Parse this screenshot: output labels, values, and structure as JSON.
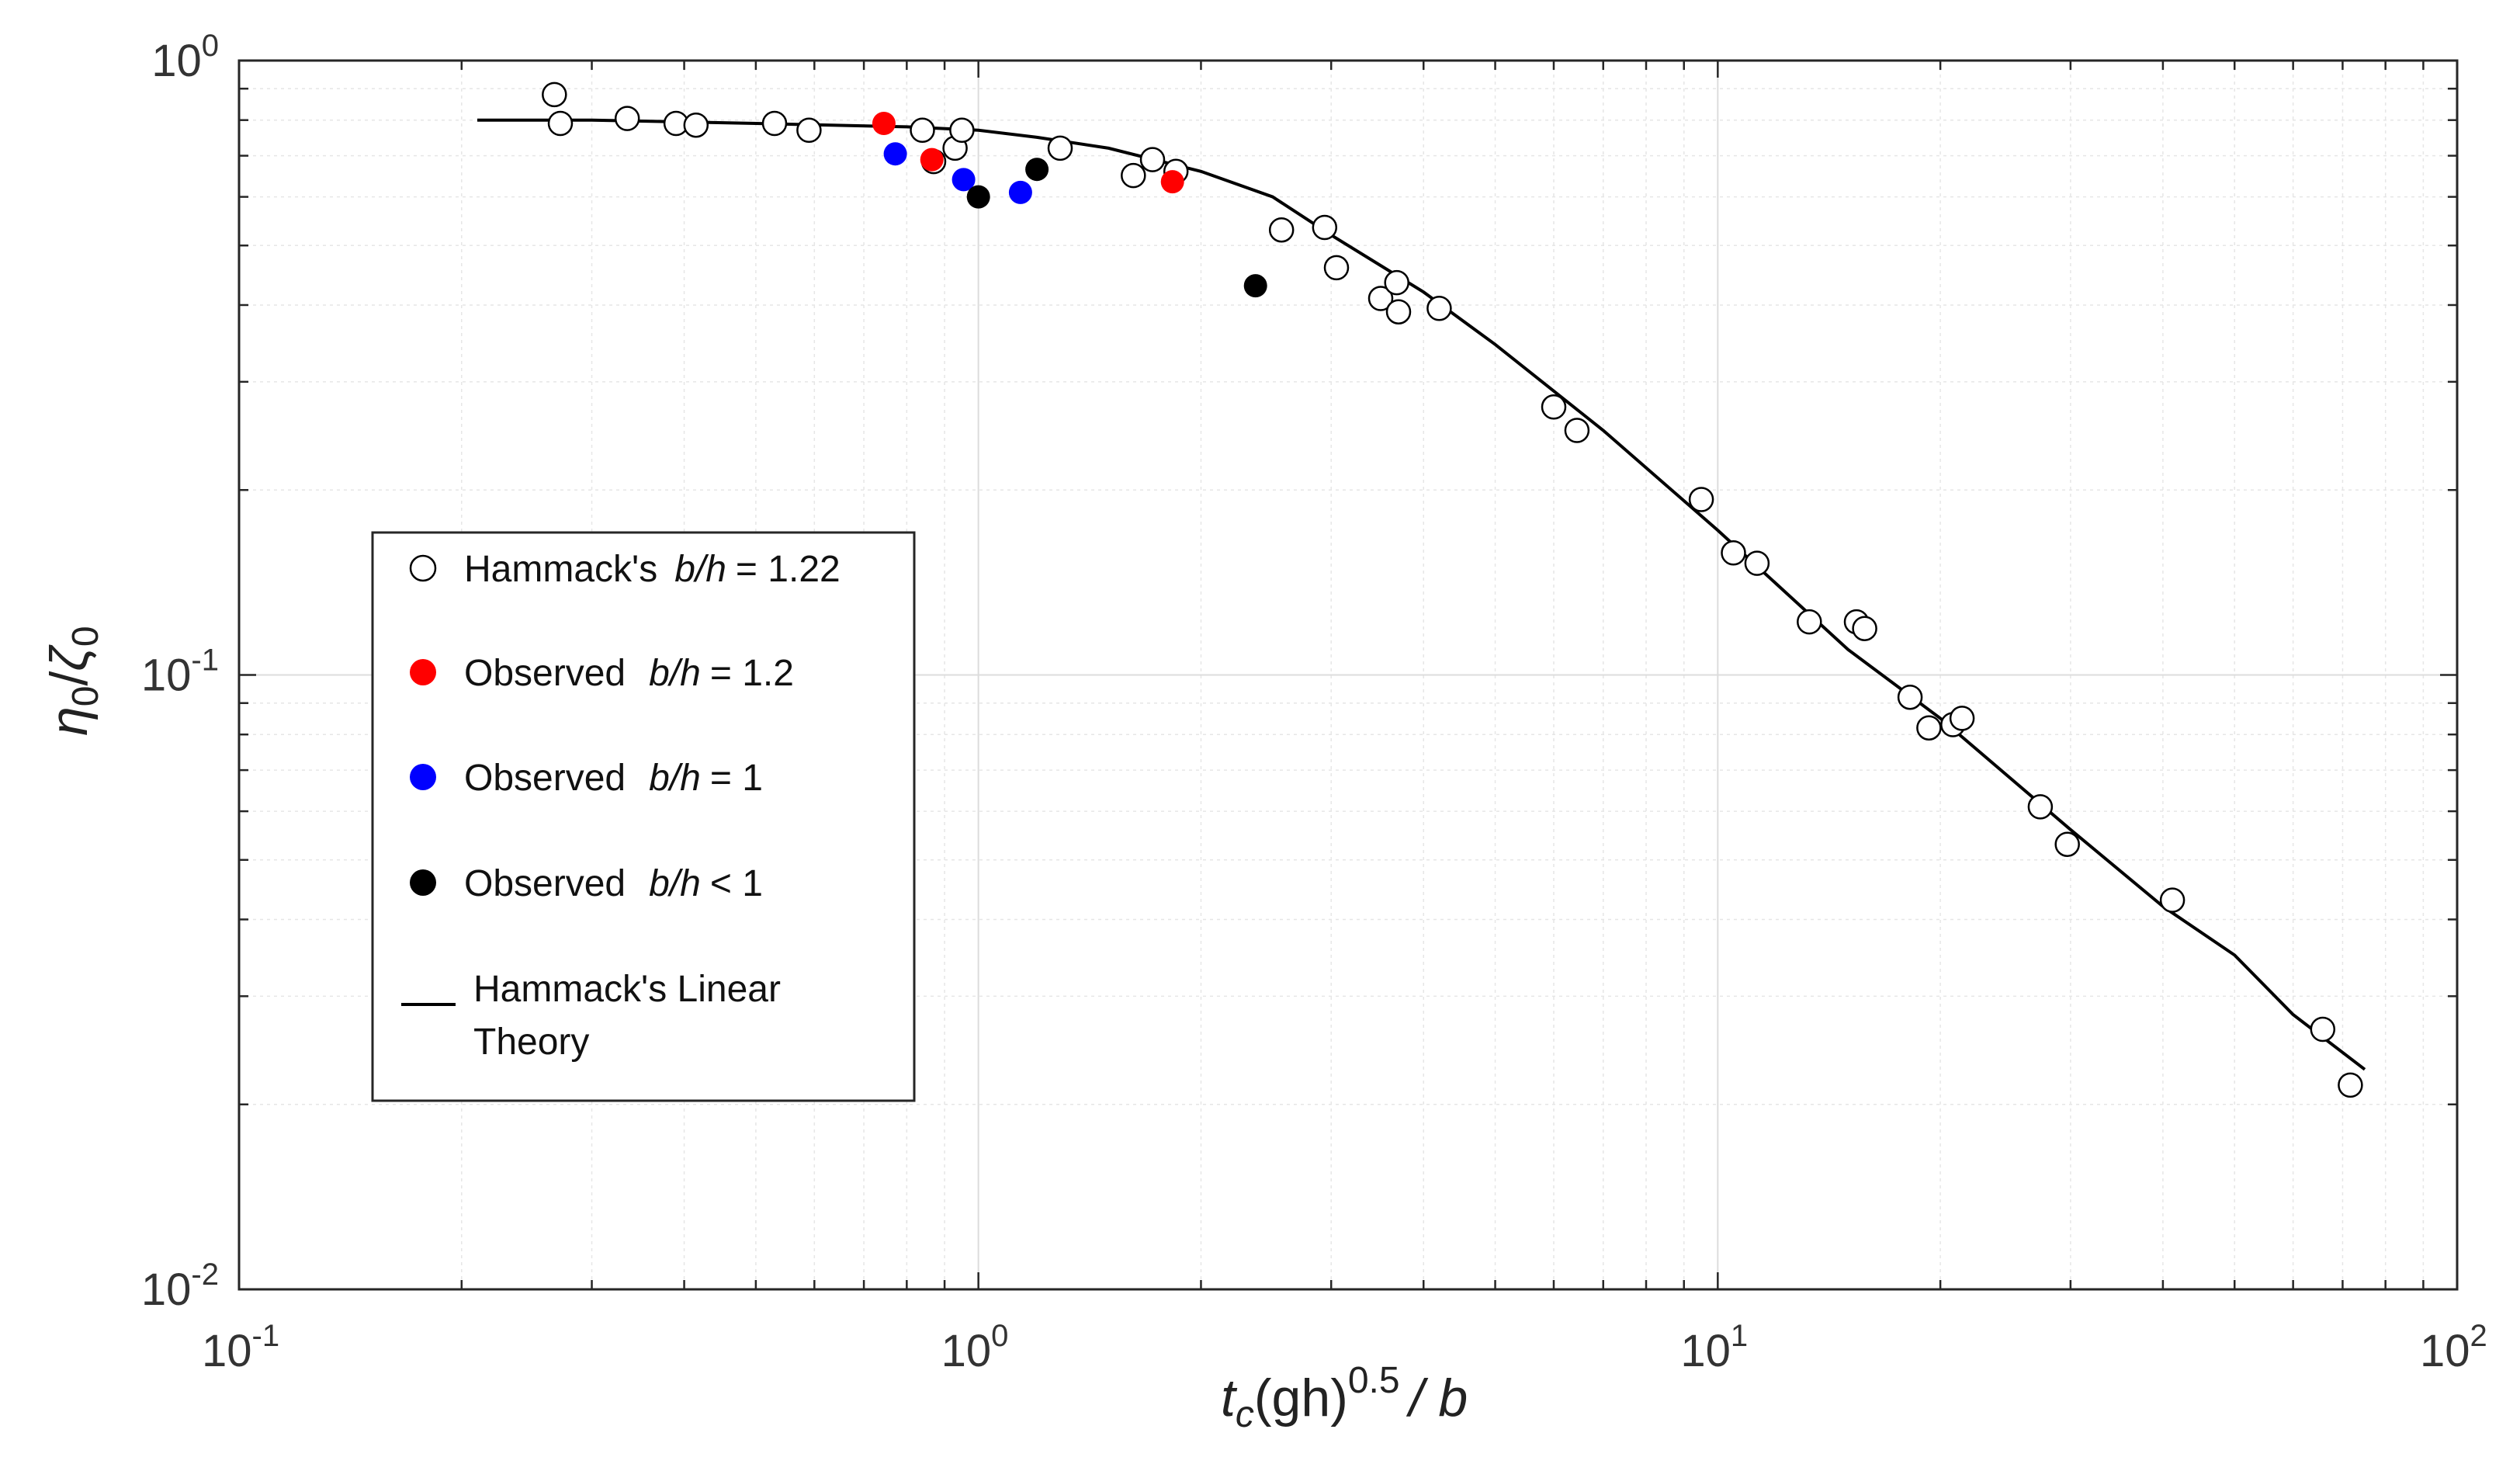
{
  "chart_data": {
    "type": "scatter",
    "title": "",
    "xscale": "log",
    "yscale": "log",
    "xlim": [
      0.1,
      100
    ],
    "ylim": [
      0.01,
      1
    ],
    "grid": true,
    "legend_position": "center-left",
    "xlabel": {
      "main": "t",
      "sub1": "c",
      "mid": "(gh)",
      "sup": "0.5",
      "end": "/ b"
    },
    "ylabel": {
      "eta": "η",
      "sub1": "0",
      "slash": "/",
      "zeta": "ζ",
      "sub2": "0"
    },
    "xticks": [
      {
        "value": 0.1,
        "base": "10",
        "exp": "-1"
      },
      {
        "value": 1,
        "base": "10",
        "exp": "0"
      },
      {
        "value": 10,
        "base": "10",
        "exp": "1"
      },
      {
        "value": 100,
        "base": "10",
        "exp": "2"
      }
    ],
    "yticks": [
      {
        "value": 0.01,
        "base": "10",
        "exp": "-2"
      },
      {
        "value": 0.1,
        "base": "10",
        "exp": "-1"
      },
      {
        "value": 1,
        "base": "10",
        "exp": "0"
      }
    ],
    "legend": [
      {
        "key": "hammack",
        "prefix": "Hammack's",
        "ratio": "b/h",
        "suffix": "= 1.22"
      },
      {
        "key": "red",
        "prefix": "Observed",
        "ratio": "b/h",
        "suffix": "= 1.2"
      },
      {
        "key": "blue",
        "prefix": "Observed",
        "ratio": "b/h",
        "suffix": "= 1"
      },
      {
        "key": "black",
        "prefix": "Observed",
        "ratio": "b/h",
        "suffix": "< 1"
      },
      {
        "key": "theory",
        "line1": "Hammack's Linear",
        "line2": "Theory"
      }
    ],
    "series": [
      {
        "name": "Hammack's b/h = 1.22",
        "key": "hammack",
        "marker": "open-circle",
        "color": "#000000",
        "points": [
          [
            0.267,
            0.88
          ],
          [
            0.272,
            0.79
          ],
          [
            0.335,
            0.805
          ],
          [
            0.39,
            0.79
          ],
          [
            0.415,
            0.785
          ],
          [
            0.53,
            0.79
          ],
          [
            0.59,
            0.77
          ],
          [
            0.84,
            0.77
          ],
          [
            0.87,
            0.685
          ],
          [
            0.93,
            0.72
          ],
          [
            0.95,
            0.77
          ],
          [
            1.29,
            0.72
          ],
          [
            1.62,
            0.65
          ],
          [
            1.72,
            0.69
          ],
          [
            1.85,
            0.66
          ],
          [
            2.57,
            0.53
          ],
          [
            2.94,
            0.535
          ],
          [
            3.05,
            0.46
          ],
          [
            3.5,
            0.41
          ],
          [
            3.68,
            0.435
          ],
          [
            3.7,
            0.39
          ],
          [
            4.2,
            0.395
          ],
          [
            6.0,
            0.273
          ],
          [
            6.45,
            0.25
          ],
          [
            9.5,
            0.193
          ],
          [
            10.5,
            0.158
          ],
          [
            11.3,
            0.152
          ],
          [
            13.3,
            0.122
          ],
          [
            15.4,
            0.122
          ],
          [
            15.8,
            0.119
          ],
          [
            18.2,
            0.092
          ],
          [
            19.3,
            0.082
          ],
          [
            20.8,
            0.083
          ],
          [
            21.4,
            0.085
          ],
          [
            27.3,
            0.061
          ],
          [
            29.7,
            0.053
          ],
          [
            41.2,
            0.043
          ],
          [
            65.8,
            0.0265
          ],
          [
            71.7,
            0.0215
          ]
        ]
      },
      {
        "name": "Observed b/h = 1.2",
        "key": "red",
        "marker": "filled-circle",
        "color": "#ff0000",
        "points": [
          [
            0.745,
            0.79
          ],
          [
            0.865,
            0.69
          ],
          [
            1.83,
            0.635
          ]
        ]
      },
      {
        "name": "Observed b/h = 1",
        "key": "blue",
        "marker": "filled-circle",
        "color": "#0000ff",
        "points": [
          [
            0.772,
            0.705
          ],
          [
            0.955,
            0.64
          ],
          [
            1.14,
            0.61
          ]
        ]
      },
      {
        "name": "Observed b/h < 1",
        "key": "black",
        "marker": "filled-circle",
        "color": "#000000",
        "points": [
          [
            1.0,
            0.6
          ],
          [
            1.2,
            0.665
          ],
          [
            2.37,
            0.43
          ]
        ]
      },
      {
        "name": "Hammack's Linear Theory",
        "key": "theory",
        "marker": "line",
        "color": "#000000",
        "points": [
          [
            0.21,
            0.8
          ],
          [
            0.3,
            0.8
          ],
          [
            0.5,
            0.79
          ],
          [
            0.8,
            0.78
          ],
          [
            1.0,
            0.77
          ],
          [
            1.2,
            0.75
          ],
          [
            1.5,
            0.72
          ],
          [
            2.0,
            0.66
          ],
          [
            2.5,
            0.6
          ],
          [
            3.0,
            0.52
          ],
          [
            4.0,
            0.42
          ],
          [
            5.0,
            0.345
          ],
          [
            7.0,
            0.25
          ],
          [
            10.0,
            0.172
          ],
          [
            15.0,
            0.11
          ],
          [
            20.0,
            0.085
          ],
          [
            30.0,
            0.056
          ],
          [
            40.0,
            0.042
          ],
          [
            50.0,
            0.035
          ],
          [
            60.0,
            0.028
          ],
          [
            75.0,
            0.0228
          ]
        ]
      }
    ]
  }
}
